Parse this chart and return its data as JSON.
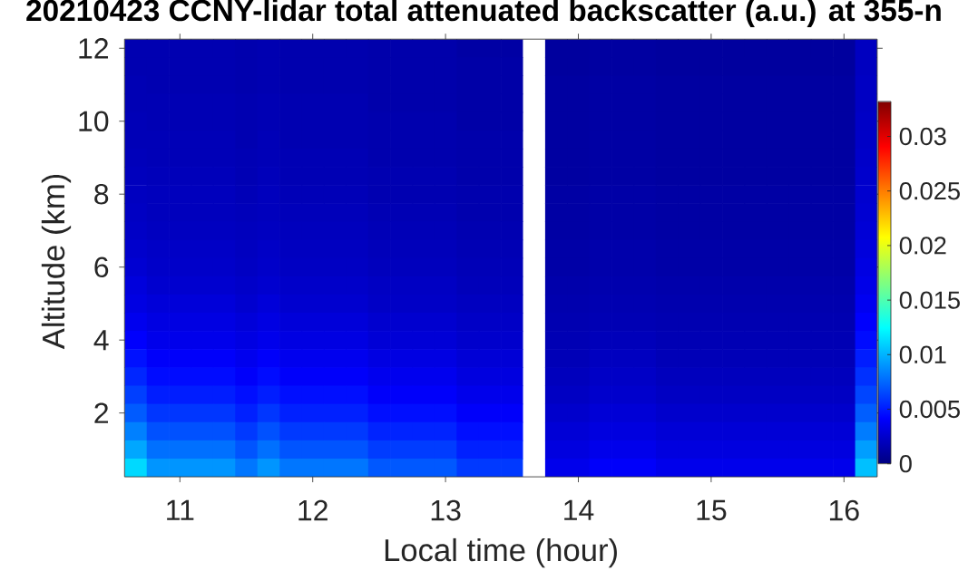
{
  "chart_data": {
    "type": "heatmap",
    "title": "20210423 CCNY-lidar total attenuated backscatter (a.u.) at 355-n",
    "xlabel": "Local time (hour)",
    "ylabel": "Altitude (km)",
    "clim": [
      0,
      0.0332
    ],
    "cticks": [
      0,
      0.005,
      0.01,
      0.015,
      0.02,
      0.025,
      0.03
    ],
    "categories": [
      null,
      null,
      "11",
      null,
      null,
      null,
      null,
      null,
      "12",
      null,
      null,
      null,
      null,
      null,
      "13",
      null,
      null,
      null,
      null,
      null,
      "14",
      null,
      null,
      null,
      null,
      null,
      "15",
      null,
      null,
      null,
      null,
      null,
      "16",
      null
    ],
    "y_categories": [
      "12",
      null,
      null,
      null,
      "10",
      null,
      null,
      null,
      "8",
      null,
      null,
      null,
      "6",
      null,
      null,
      null,
      "4",
      null,
      null,
      null,
      "2",
      null,
      null,
      null
    ],
    "cells": [
      [
        0.0016,
        0.0016,
        0.0016,
        0.0016,
        0.0016,
        0.0015,
        0.0016,
        0.0015,
        0.0015,
        0.0015,
        0.0015,
        0.0014,
        0.0014,
        0.0014,
        0.0014,
        0.0012,
        0.0012,
        0.0012,
        null,
        0.001,
        0.001,
        0.0011,
        0.0011,
        0.0011,
        0.001,
        0.001,
        0.001,
        0.001,
        0.001,
        0.001,
        0.001,
        0.001,
        0.001,
        0.0021
      ],
      [
        0.0016,
        0.0016,
        0.0016,
        0.0016,
        0.0016,
        0.0015,
        0.0016,
        0.0015,
        0.0015,
        0.0015,
        0.0015,
        0.0014,
        0.0014,
        0.0014,
        0.0014,
        0.0013,
        0.0013,
        0.0013,
        null,
        0.001,
        0.001,
        0.0011,
        0.0011,
        0.0011,
        0.001,
        0.001,
        0.001,
        0.001,
        0.001,
        0.001,
        0.001,
        0.001,
        0.001,
        0.0021
      ],
      [
        0.0017,
        0.0016,
        0.0016,
        0.0016,
        0.0016,
        0.0015,
        0.0016,
        0.0015,
        0.0015,
        0.0015,
        0.0015,
        0.0014,
        0.0014,
        0.0014,
        0.0014,
        0.0013,
        0.0013,
        0.0013,
        null,
        0.0011,
        0.0011,
        0.0012,
        0.0012,
        0.0012,
        0.0011,
        0.0011,
        0.0011,
        0.0011,
        0.0011,
        0.0011,
        0.0011,
        0.0011,
        0.0011,
        0.0022
      ],
      [
        0.0017,
        0.0017,
        0.0017,
        0.0017,
        0.0017,
        0.0016,
        0.0017,
        0.0016,
        0.0016,
        0.0016,
        0.0016,
        0.0014,
        0.0014,
        0.0014,
        0.0014,
        0.0013,
        0.0013,
        0.0013,
        null,
        0.0011,
        0.0011,
        0.0012,
        0.0012,
        0.0012,
        0.0011,
        0.0011,
        0.0011,
        0.0011,
        0.0011,
        0.0011,
        0.0011,
        0.0011,
        0.0011,
        0.0022
      ],
      [
        0.0018,
        0.0017,
        0.0017,
        0.0017,
        0.0017,
        0.0016,
        0.0017,
        0.0016,
        0.0016,
        0.0016,
        0.0016,
        0.0015,
        0.0015,
        0.0015,
        0.0015,
        0.0013,
        0.0013,
        0.0013,
        null,
        0.0011,
        0.0011,
        0.0012,
        0.0012,
        0.0012,
        0.0011,
        0.0011,
        0.0011,
        0.0011,
        0.0011,
        0.0011,
        0.0011,
        0.0011,
        0.0011,
        0.0023
      ],
      [
        0.0018,
        0.0018,
        0.0018,
        0.0018,
        0.0018,
        0.0016,
        0.0018,
        0.0016,
        0.0016,
        0.0016,
        0.0016,
        0.0015,
        0.0015,
        0.0015,
        0.0015,
        0.0014,
        0.0014,
        0.0014,
        null,
        0.0011,
        0.0011,
        0.0012,
        0.0012,
        0.0012,
        0.0011,
        0.0011,
        0.0011,
        0.0011,
        0.0011,
        0.0011,
        0.0011,
        0.0011,
        0.0011,
        0.0023
      ],
      [
        0.0019,
        0.0018,
        0.0018,
        0.0018,
        0.0018,
        0.0017,
        0.0018,
        0.0017,
        0.0017,
        0.0017,
        0.0017,
        0.0015,
        0.0015,
        0.0015,
        0.0015,
        0.0014,
        0.0014,
        0.0014,
        null,
        0.0011,
        0.0011,
        0.0012,
        0.0012,
        0.0012,
        0.0011,
        0.0011,
        0.0011,
        0.0011,
        0.0011,
        0.0011,
        0.0011,
        0.0011,
        0.0011,
        0.0024
      ],
      [
        0.002,
        0.0019,
        0.0019,
        0.0019,
        0.0019,
        0.0017,
        0.0019,
        0.0017,
        0.0017,
        0.0017,
        0.0017,
        0.0016,
        0.0016,
        0.0016,
        0.0016,
        0.0014,
        0.0014,
        0.0014,
        null,
        0.0011,
        0.0011,
        0.0012,
        0.0012,
        0.0012,
        0.0011,
        0.0011,
        0.0011,
        0.0011,
        0.0011,
        0.0011,
        0.0011,
        0.0011,
        0.0011,
        0.0025
      ],
      [
        0.0021,
        0.002,
        0.002,
        0.002,
        0.002,
        0.0018,
        0.002,
        0.0018,
        0.0018,
        0.0018,
        0.0018,
        0.0016,
        0.0016,
        0.0016,
        0.0016,
        0.0015,
        0.0015,
        0.0015,
        null,
        0.0012,
        0.0012,
        0.0013,
        0.0013,
        0.0013,
        0.0012,
        0.0012,
        0.0012,
        0.0012,
        0.0012,
        0.0012,
        0.0012,
        0.0012,
        0.0012,
        0.0026
      ],
      [
        0.0022,
        0.002,
        0.002,
        0.002,
        0.002,
        0.0019,
        0.002,
        0.0019,
        0.0019,
        0.0019,
        0.0019,
        0.0017,
        0.0017,
        0.0017,
        0.0017,
        0.0015,
        0.0015,
        0.0015,
        null,
        0.0012,
        0.0012,
        0.0013,
        0.0013,
        0.0013,
        0.0012,
        0.0012,
        0.0012,
        0.0012,
        0.0012,
        0.0012,
        0.0012,
        0.0012,
        0.0012,
        0.0027
      ],
      [
        0.0023,
        0.0021,
        0.0021,
        0.0021,
        0.0021,
        0.002,
        0.0021,
        0.002,
        0.002,
        0.002,
        0.002,
        0.0018,
        0.0018,
        0.0018,
        0.0018,
        0.0016,
        0.0016,
        0.0016,
        null,
        0.0012,
        0.0012,
        0.0013,
        0.0013,
        0.0013,
        0.0012,
        0.0012,
        0.0012,
        0.0012,
        0.0012,
        0.0012,
        0.0012,
        0.0012,
        0.0012,
        0.0028
      ],
      [
        0.0025,
        0.0023,
        0.0023,
        0.0023,
        0.0023,
        0.0021,
        0.0023,
        0.0021,
        0.0021,
        0.0021,
        0.0021,
        0.0019,
        0.0019,
        0.0019,
        0.0019,
        0.0017,
        0.0017,
        0.0017,
        null,
        0.0013,
        0.0013,
        0.0014,
        0.0014,
        0.0014,
        0.0013,
        0.0013,
        0.0013,
        0.0013,
        0.0013,
        0.0013,
        0.0013,
        0.0013,
        0.0013,
        0.003
      ],
      [
        0.0027,
        0.0024,
        0.0024,
        0.0024,
        0.0024,
        0.0022,
        0.0024,
        0.0022,
        0.0022,
        0.0022,
        0.0022,
        0.002,
        0.002,
        0.002,
        0.002,
        0.0018,
        0.0018,
        0.0018,
        null,
        0.0013,
        0.0013,
        0.0014,
        0.0014,
        0.0014,
        0.0013,
        0.0013,
        0.0013,
        0.0013,
        0.0013,
        0.0013,
        0.0013,
        0.0013,
        0.0013,
        0.0032
      ],
      [
        0.003,
        0.0026,
        0.0026,
        0.0026,
        0.0026,
        0.0024,
        0.0026,
        0.0024,
        0.0024,
        0.0024,
        0.0024,
        0.0022,
        0.0022,
        0.0022,
        0.0022,
        0.0019,
        0.0019,
        0.0019,
        null,
        0.0014,
        0.0014,
        0.0015,
        0.0015,
        0.0015,
        0.0014,
        0.0014,
        0.0014,
        0.0014,
        0.0014,
        0.0014,
        0.0014,
        0.0014,
        0.0014,
        0.0034
      ],
      [
        0.0032,
        0.0029,
        0.0029,
        0.0029,
        0.0029,
        0.0026,
        0.0029,
        0.0026,
        0.0026,
        0.0026,
        0.0026,
        0.0023,
        0.0023,
        0.0023,
        0.0023,
        0.0021,
        0.0021,
        0.0021,
        null,
        0.0015,
        0.0015,
        0.0016,
        0.0016,
        0.0016,
        0.0015,
        0.0015,
        0.0015,
        0.0015,
        0.0015,
        0.0015,
        0.0015,
        0.0015,
        0.0015,
        0.0037
      ],
      [
        0.0036,
        0.0032,
        0.0032,
        0.0032,
        0.0032,
        0.0029,
        0.0032,
        0.0029,
        0.0029,
        0.0029,
        0.0029,
        0.0026,
        0.0026,
        0.0026,
        0.0026,
        0.0023,
        0.0023,
        0.0023,
        null,
        0.0016,
        0.0016,
        0.0017,
        0.0017,
        0.0017,
        0.0016,
        0.0016,
        0.0016,
        0.0016,
        0.0016,
        0.0016,
        0.0016,
        0.0016,
        0.0016,
        0.0041
      ],
      [
        0.0041,
        0.0035,
        0.0035,
        0.0035,
        0.0035,
        0.0032,
        0.0035,
        0.0032,
        0.0032,
        0.0032,
        0.0032,
        0.0028,
        0.0028,
        0.0028,
        0.0028,
        0.0025,
        0.0025,
        0.0025,
        null,
        0.0017,
        0.0017,
        0.0019,
        0.0019,
        0.0019,
        0.0017,
        0.0017,
        0.0017,
        0.0017,
        0.0017,
        0.0017,
        0.0017,
        0.0017,
        0.0017,
        0.0045
      ],
      [
        0.0047,
        0.004,
        0.004,
        0.004,
        0.004,
        0.0036,
        0.004,
        0.0036,
        0.0036,
        0.0036,
        0.0036,
        0.0032,
        0.0032,
        0.0032,
        0.0032,
        0.0028,
        0.0028,
        0.0028,
        null,
        0.0018,
        0.0018,
        0.0021,
        0.0021,
        0.0021,
        0.0018,
        0.0018,
        0.0018,
        0.0018,
        0.0018,
        0.0018,
        0.0018,
        0.0018,
        0.0018,
        0.0051
      ],
      [
        0.0054,
        0.0045,
        0.0045,
        0.0045,
        0.0045,
        0.004,
        0.0045,
        0.004,
        0.004,
        0.004,
        0.004,
        0.0036,
        0.0036,
        0.0036,
        0.0036,
        0.0031,
        0.0031,
        0.0031,
        null,
        0.002,
        0.002,
        0.0023,
        0.0023,
        0.0023,
        0.002,
        0.002,
        0.002,
        0.002,
        0.002,
        0.002,
        0.002,
        0.002,
        0.002,
        0.0057
      ],
      [
        0.0062,
        0.0051,
        0.0051,
        0.0051,
        0.0051,
        0.0046,
        0.0051,
        0.0046,
        0.0046,
        0.0046,
        0.0046,
        0.004,
        0.004,
        0.004,
        0.004,
        0.0035,
        0.0035,
        0.0035,
        null,
        0.0022,
        0.0022,
        0.0025,
        0.0025,
        0.0025,
        0.0022,
        0.0022,
        0.0022,
        0.0022,
        0.0022,
        0.0022,
        0.0022,
        0.0022,
        0.0022,
        0.0064
      ],
      [
        0.0071,
        0.0059,
        0.0059,
        0.0059,
        0.0059,
        0.0052,
        0.0059,
        0.0052,
        0.0052,
        0.0052,
        0.0052,
        0.0046,
        0.0046,
        0.0046,
        0.0046,
        0.004,
        0.004,
        0.004,
        null,
        0.0025,
        0.0025,
        0.0028,
        0.0028,
        0.0028,
        0.0025,
        0.0025,
        0.0025,
        0.0025,
        0.0025,
        0.0025,
        0.0025,
        0.0025,
        0.0025,
        0.0072
      ],
      [
        0.0083,
        0.0068,
        0.0068,
        0.0068,
        0.0068,
        0.006,
        0.0068,
        0.006,
        0.006,
        0.006,
        0.006,
        0.0053,
        0.0053,
        0.0053,
        0.0053,
        0.0046,
        0.0046,
        0.0046,
        null,
        0.0028,
        0.0028,
        0.0031,
        0.0031,
        0.0031,
        0.0028,
        0.0028,
        0.0028,
        0.0028,
        0.0028,
        0.0028,
        0.0028,
        0.0028,
        0.0028,
        0.0082
      ],
      [
        0.0096,
        0.0078,
        0.0078,
        0.0078,
        0.0078,
        0.0069,
        0.0078,
        0.0069,
        0.0069,
        0.0069,
        0.0069,
        0.0061,
        0.0061,
        0.0061,
        0.0061,
        0.0052,
        0.0052,
        0.0052,
        null,
        0.0031,
        0.0031,
        0.0035,
        0.0035,
        0.0035,
        0.0031,
        0.0031,
        0.0031,
        0.0031,
        0.0031,
        0.0031,
        0.0031,
        0.0031,
        0.0031,
        0.0093
      ],
      [
        0.0112,
        0.009,
        0.009,
        0.009,
        0.009,
        0.008,
        0.009,
        0.008,
        0.008,
        0.008,
        0.008,
        0.007,
        0.007,
        0.007,
        0.007,
        0.006,
        0.006,
        0.006,
        null,
        0.0035,
        0.0035,
        0.004,
        0.004,
        0.004,
        0.0035,
        0.0035,
        0.0035,
        0.0035,
        0.0035,
        0.0035,
        0.0035,
        0.0035,
        0.0035,
        0.0104
      ]
    ]
  }
}
